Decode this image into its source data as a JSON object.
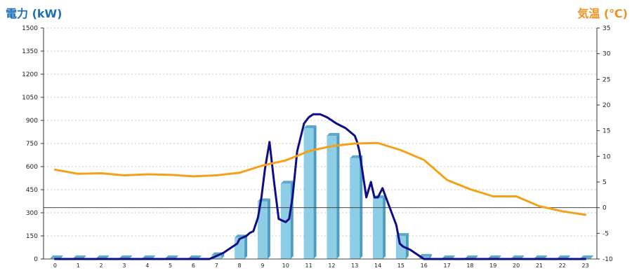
{
  "chart_data": {
    "type": "bar",
    "left_title": "電力 (kW)",
    "right_title": "気温 (℃)",
    "categories": [
      "0",
      "1",
      "2",
      "3",
      "4",
      "5",
      "6",
      "7",
      "8",
      "9",
      "10",
      "11",
      "12",
      "13",
      "14",
      "15",
      "16",
      "17",
      "18",
      "19",
      "20",
      "21",
      "22",
      "23"
    ],
    "y_left": {
      "min": 0,
      "max": 1500,
      "ticks": [
        0,
        150,
        300,
        450,
        600,
        750,
        900,
        1050,
        1200,
        1350,
        1500
      ]
    },
    "y_right": {
      "min": -10,
      "max": 35,
      "ticks": [
        -10,
        -5,
        0,
        5,
        10,
        15,
        20,
        25,
        30,
        35
      ]
    },
    "grid": true,
    "series": [
      {
        "kind": "bar",
        "axis": "left",
        "color": "#8ecde6",
        "values": [
          5,
          5,
          5,
          5,
          5,
          5,
          5,
          25,
          140,
          375,
          490,
          850,
          800,
          655,
          395,
          150,
          15,
          5,
          5,
          5,
          5,
          5,
          5,
          5
        ]
      },
      {
        "kind": "line",
        "axis": "left",
        "color": "#0d0d8a",
        "x": [
          0,
          6.7,
          7.0,
          7.3,
          7.6,
          7.9,
          8.0,
          8.15,
          8.3,
          8.45,
          8.6,
          8.8,
          8.95,
          9.1,
          9.3,
          9.5,
          9.7,
          9.85,
          10.0,
          10.15,
          10.3,
          10.5,
          10.8,
          11.0,
          11.2,
          11.5,
          11.8,
          12.2,
          12.6,
          13.0,
          13.1,
          13.2,
          13.3,
          13.5,
          13.7,
          13.85,
          14.0,
          14.2,
          14.4,
          14.6,
          14.8,
          14.95,
          15.1,
          15.4,
          15.7,
          16.0,
          23
        ],
        "values": [
          0,
          0,
          20,
          40,
          70,
          100,
          130,
          140,
          150,
          170,
          180,
          270,
          400,
          580,
          760,
          500,
          260,
          250,
          240,
          260,
          400,
          700,
          880,
          920,
          940,
          940,
          920,
          880,
          850,
          800,
          760,
          700,
          600,
          400,
          500,
          400,
          400,
          460,
          380,
          300,
          220,
          100,
          80,
          60,
          30,
          0,
          0
        ]
      },
      {
        "kind": "line",
        "axis": "right",
        "color": "#f4a117",
        "x": [
          0,
          1,
          2,
          3,
          4,
          5,
          6,
          7,
          8,
          9,
          10,
          11,
          12,
          13,
          14,
          15,
          16,
          17,
          18,
          19,
          20,
          21,
          22,
          23
        ],
        "values": [
          7.4,
          6.6,
          6.7,
          6.3,
          6.5,
          6.4,
          6.1,
          6.3,
          6.8,
          8.2,
          9.2,
          11.0,
          12.0,
          12.5,
          12.6,
          11.2,
          9.3,
          5.4,
          3.6,
          2.2,
          2.2,
          0.3,
          -0.7,
          -1.4
        ]
      }
    ]
  }
}
